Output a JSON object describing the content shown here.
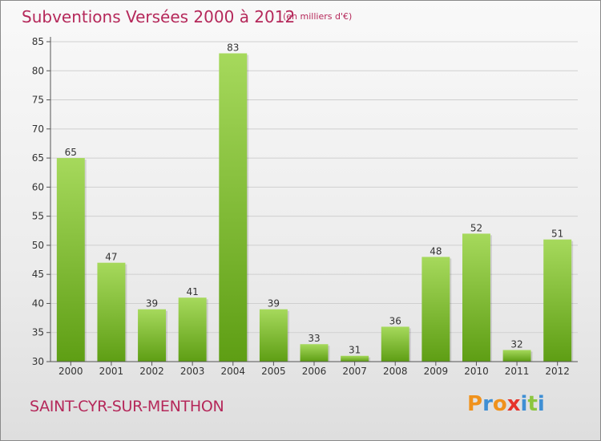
{
  "header": {
    "title": "Subventions Versées 2000 à 2012",
    "unit": "(en milliers d'€)"
  },
  "footer": {
    "place": "SAINT-CYR-SUR-MENTHON",
    "brand": [
      "P",
      "r",
      "o",
      "x",
      "i",
      "t",
      "i"
    ]
  },
  "colors": {
    "title": "#b5285a",
    "bar_light": "#a6d95c",
    "bar_dark": "#5e9e14",
    "brand": [
      "#f0921c",
      "#3f8fd4",
      "#f0921c",
      "#e6332a",
      "#3f8fd4",
      "#8cc63f",
      "#3f8fd4"
    ]
  },
  "chart_data": {
    "type": "bar",
    "categories": [
      "2000",
      "2001",
      "2002",
      "2003",
      "2004",
      "2005",
      "2006",
      "2007",
      "2008",
      "2009",
      "2010",
      "2011",
      "2012"
    ],
    "values": [
      65,
      47,
      39,
      41,
      83,
      39,
      33,
      31,
      36,
      48,
      52,
      32,
      51
    ],
    "ylim": [
      30,
      85
    ],
    "yticks": [
      30,
      35,
      40,
      45,
      50,
      55,
      60,
      65,
      70,
      75,
      80,
      85
    ],
    "grid": true
  }
}
